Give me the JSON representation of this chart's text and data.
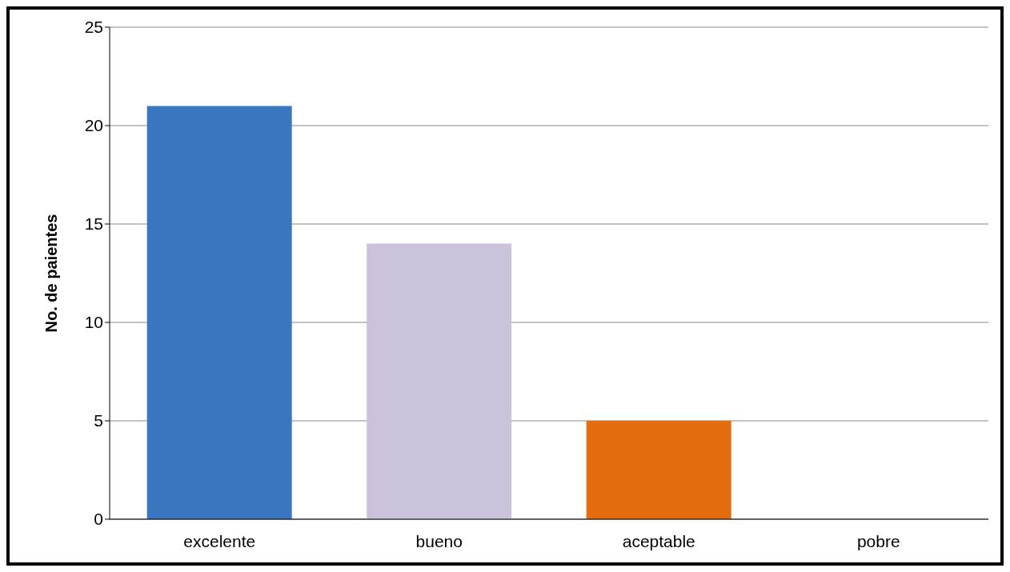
{
  "chart_data": {
    "type": "bar",
    "ylabel": "No. de paientes",
    "categories": [
      "excelente",
      "bueno",
      "aceptable",
      "pobre"
    ],
    "values": [
      21,
      14,
      5,
      0
    ],
    "colors": [
      "#3a76c0",
      "#cbc2dc",
      "#e36c0e",
      "#9bbb59"
    ],
    "ylim": [
      0,
      25
    ],
    "yticks": [
      0,
      5,
      10,
      15,
      20,
      25
    ],
    "grid": "y"
  }
}
